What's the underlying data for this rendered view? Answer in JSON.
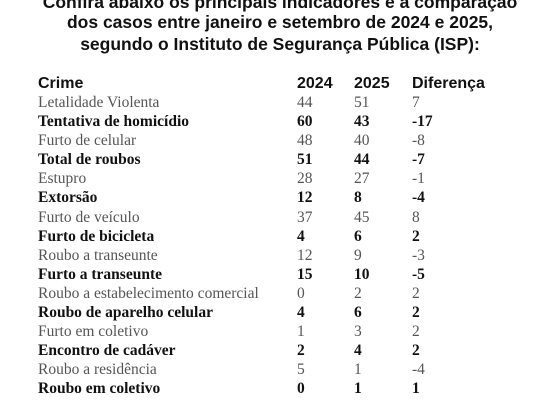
{
  "title": {
    "line1": "Confira abaixo os principais indicadores e a comparação",
    "line2": "dos casos entre janeiro e setembro de 2024 e 2025,",
    "line3": "segundo o Instituto de Segurança Pública (ISP):"
  },
  "table": {
    "headers": {
      "crime": "Crime",
      "y2024": "2024",
      "y2025": "2025",
      "diff": "Diferença"
    },
    "rows": [
      {
        "crime": "Letalidade Violenta",
        "y2024": "44",
        "y2025": "51",
        "diff": "7",
        "bold": false
      },
      {
        "crime": "Tentativa de homicídio",
        "y2024": "60",
        "y2025": "43",
        "diff": "-17",
        "bold": true
      },
      {
        "crime": "Furto de celular",
        "y2024": "48",
        "y2025": "40",
        "diff": "-8",
        "bold": false
      },
      {
        "crime": "Total de roubos",
        "y2024": "51",
        "y2025": "44",
        "diff": "-7",
        "bold": true
      },
      {
        "crime": "Estupro",
        "y2024": "28",
        "y2025": "27",
        "diff": "-1",
        "bold": false
      },
      {
        "crime": "Extorsão",
        "y2024": "12",
        "y2025": "8",
        "diff": "-4",
        "bold": true
      },
      {
        "crime": "Furto de veículo",
        "y2024": "37",
        "y2025": "45",
        "diff": "8",
        "bold": false
      },
      {
        "crime": "Furto de bicicleta",
        "y2024": "4",
        "y2025": "6",
        "diff": "2",
        "bold": true
      },
      {
        "crime": "Roubo a transeunte",
        "y2024": "12",
        "y2025": "9",
        "diff": "-3",
        "bold": false
      },
      {
        "crime": "Furto a transeunte",
        "y2024": "15",
        "y2025": "10",
        "diff": "-5",
        "bold": true
      },
      {
        "crime": "Roubo a estabelecimento comercial",
        "y2024": "0",
        "y2025": "2",
        "diff": "2",
        "bold": false
      },
      {
        "crime": "Roubo de aparelho celular",
        "y2024": "4",
        "y2025": "6",
        "diff": "2",
        "bold": true
      },
      {
        "crime": "Furto em coletivo",
        "y2024": "1",
        "y2025": "3",
        "diff": "2",
        "bold": false
      },
      {
        "crime": "Encontro de cadáver",
        "y2024": "2",
        "y2025": "4",
        "diff": "2",
        "bold": true
      },
      {
        "crime": "Roubo a residência",
        "y2024": "5",
        "y2025": "1",
        "diff": "-4",
        "bold": false
      },
      {
        "crime": "Roubo em coletivo",
        "y2024": "0",
        "y2025": "1",
        "diff": "1",
        "bold": true
      }
    ]
  }
}
